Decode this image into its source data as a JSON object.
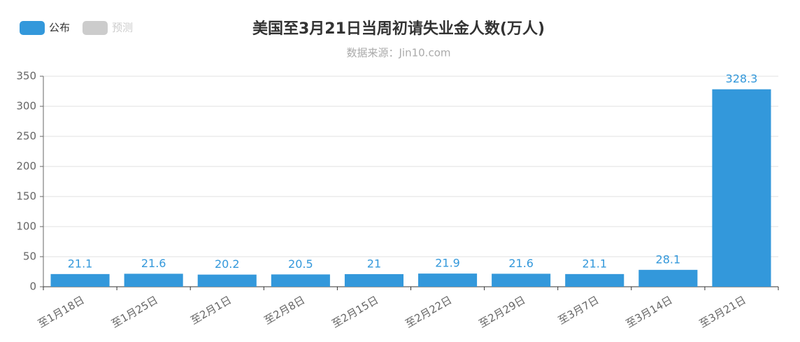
{
  "chart_data": {
    "type": "bar",
    "title": "美国至3月21日当周初请失业金人数(万人)",
    "subtitle": "数据来源：Jin10.com",
    "categories": [
      "至1月18日",
      "至1月25日",
      "至2月1日",
      "至2月8日",
      "至2月15日",
      "至2月22日",
      "至2月29日",
      "至3月7日",
      "至3月14日",
      "至3月21日"
    ],
    "series": [
      {
        "name": "公布",
        "color": "#3398db",
        "values": [
          21.1,
          21.6,
          20.2,
          20.5,
          21,
          21.9,
          21.6,
          21.1,
          28.1,
          328.3
        ]
      },
      {
        "name": "预测",
        "color": "#cccccc",
        "values": [
          null,
          null,
          null,
          null,
          null,
          null,
          null,
          null,
          null,
          null
        ]
      }
    ],
    "ylim": [
      0,
      350
    ],
    "yticks": [
      0,
      50,
      100,
      150,
      200,
      250,
      300,
      350
    ],
    "grid": true
  }
}
